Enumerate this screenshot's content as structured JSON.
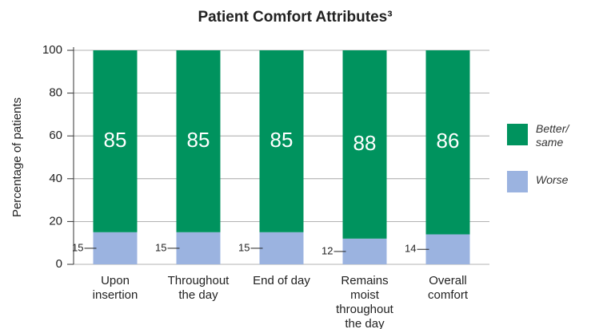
{
  "chart_data": {
    "type": "stacked_bar",
    "title": "Patient Comfort Attributes³",
    "ylabel": "Percentage of patients",
    "categories": [
      "Upon insertion",
      "Throughout the day",
      "End of day",
      "Remains moist throughout the day",
      "Overall comfort"
    ],
    "series": [
      {
        "name": "Worse",
        "color": "#9bb3e0",
        "values": [
          15,
          15,
          15,
          12,
          14
        ]
      },
      {
        "name": "Better/ same",
        "color": "#00935e",
        "values": [
          85,
          85,
          85,
          88,
          86
        ]
      }
    ],
    "ylim": [
      0,
      100
    ],
    "yticks": [
      0,
      20,
      40,
      60,
      80,
      100
    ],
    "grid": true,
    "legend": "right"
  }
}
